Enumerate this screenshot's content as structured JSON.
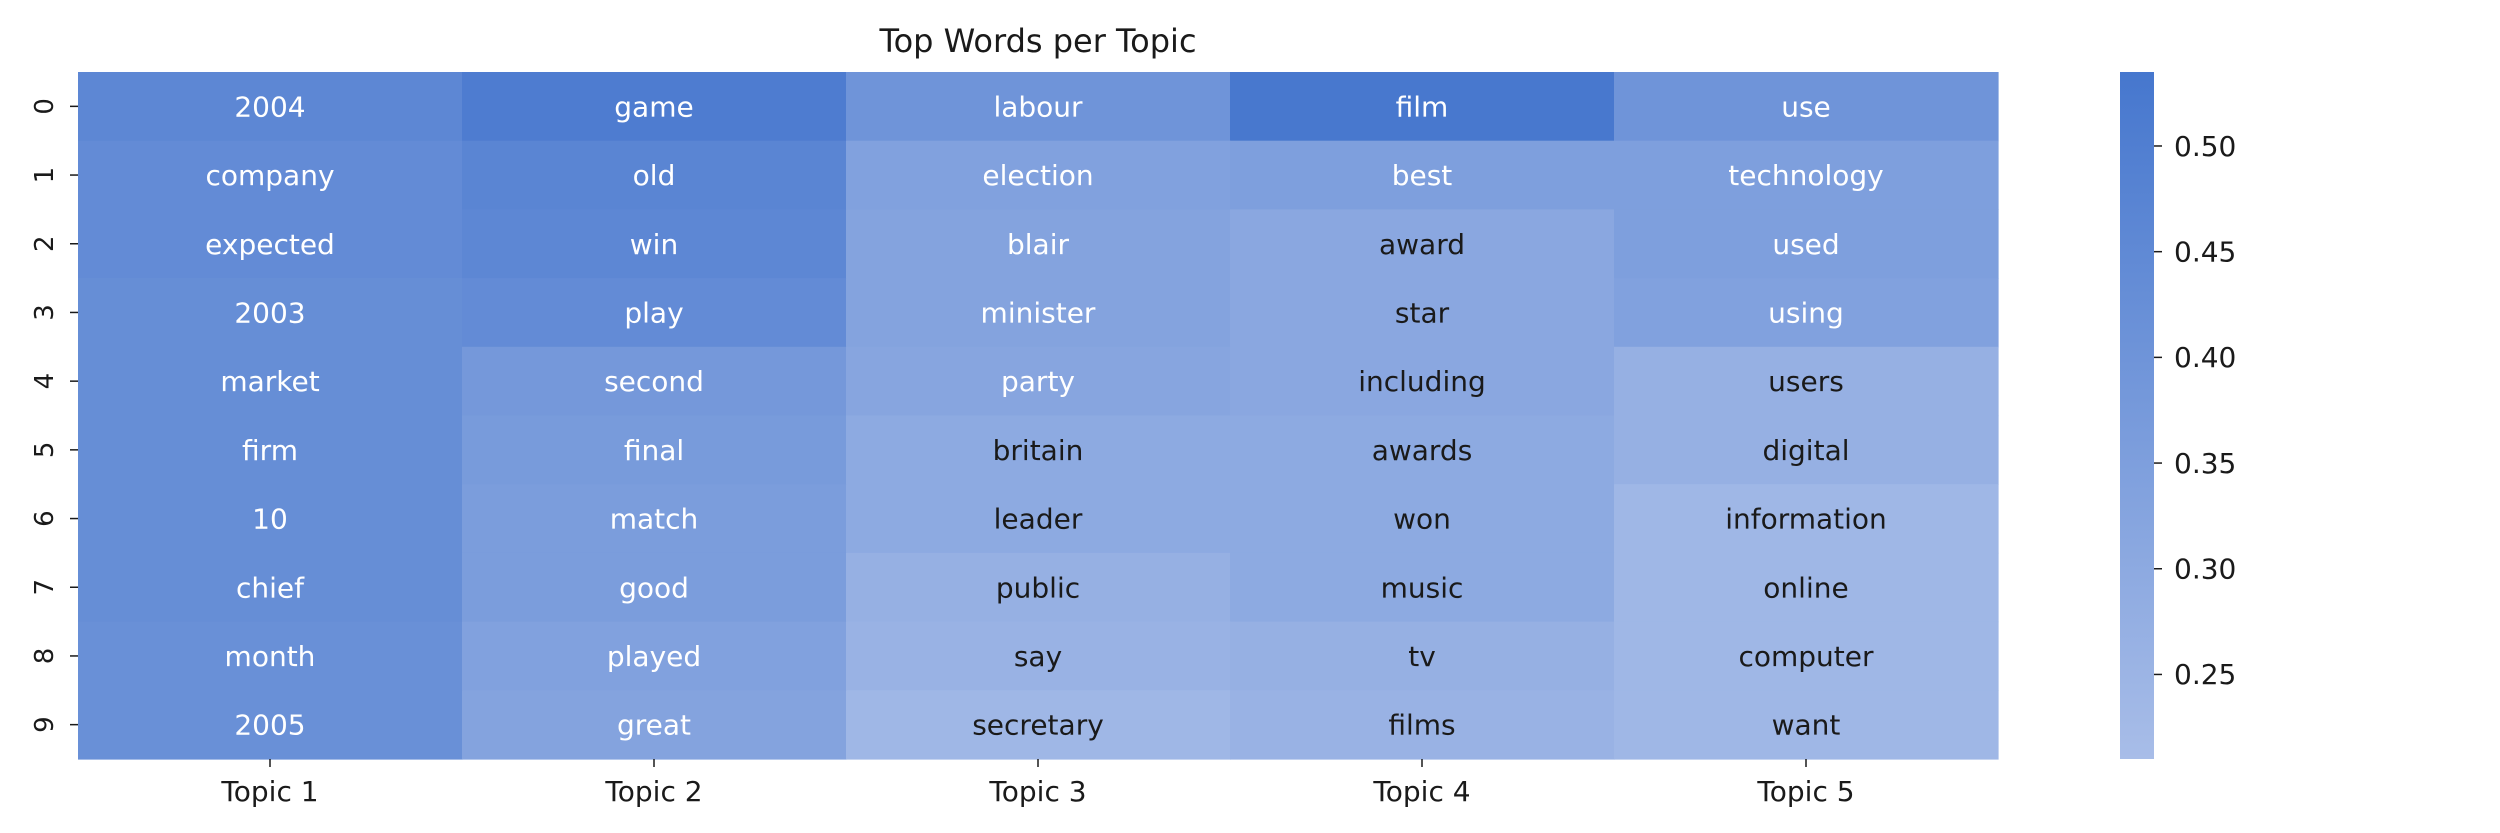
{
  "chart_data": {
    "type": "heatmap",
    "title": "Top Words per Topic",
    "xlabel": "",
    "ylabel": "",
    "columns": [
      "Topic 1",
      "Topic 2",
      "Topic 3",
      "Topic 4",
      "Topic 5"
    ],
    "rows": [
      "0",
      "1",
      "2",
      "3",
      "4",
      "5",
      "6",
      "7",
      "8",
      "9"
    ],
    "words": [
      [
        "2004",
        "game",
        "labour",
        "film",
        "use"
      ],
      [
        "company",
        "old",
        "election",
        "best",
        "technology"
      ],
      [
        "expected",
        "win",
        "blair",
        "award",
        "used"
      ],
      [
        "2003",
        "play",
        "minister",
        "star",
        "using"
      ],
      [
        "market",
        "second",
        "party",
        "including",
        "users"
      ],
      [
        "firm",
        "final",
        "britain",
        "awards",
        "digital"
      ],
      [
        "10",
        "match",
        "leader",
        "won",
        "information"
      ],
      [
        "chief",
        "good",
        "public",
        "music",
        "online"
      ],
      [
        "month",
        "played",
        "say",
        "tv",
        "computer"
      ],
      [
        "2005",
        "great",
        "secretary",
        "films",
        "want"
      ]
    ],
    "values": [
      [
        0.46,
        0.51,
        0.4,
        0.53,
        0.4
      ],
      [
        0.44,
        0.47,
        0.34,
        0.35,
        0.35
      ],
      [
        0.44,
        0.46,
        0.33,
        0.31,
        0.35
      ],
      [
        0.43,
        0.44,
        0.33,
        0.31,
        0.34
      ],
      [
        0.43,
        0.38,
        0.32,
        0.31,
        0.27
      ],
      [
        0.43,
        0.37,
        0.3,
        0.3,
        0.27
      ],
      [
        0.43,
        0.36,
        0.3,
        0.3,
        0.24
      ],
      [
        0.43,
        0.36,
        0.27,
        0.3,
        0.24
      ],
      [
        0.42,
        0.34,
        0.26,
        0.27,
        0.24
      ],
      [
        0.42,
        0.33,
        0.24,
        0.26,
        0.24
      ]
    ],
    "colorbar": {
      "min": 0.21,
      "max": 0.535,
      "ticks": [
        "0.25",
        "0.30",
        "0.35",
        "0.40",
        "0.45",
        "0.50"
      ],
      "color_low": "#a8bde8",
      "color_high": "#4677ce"
    },
    "text_color_dark": "#1a1a1a",
    "text_color_light": "#ffffff"
  }
}
